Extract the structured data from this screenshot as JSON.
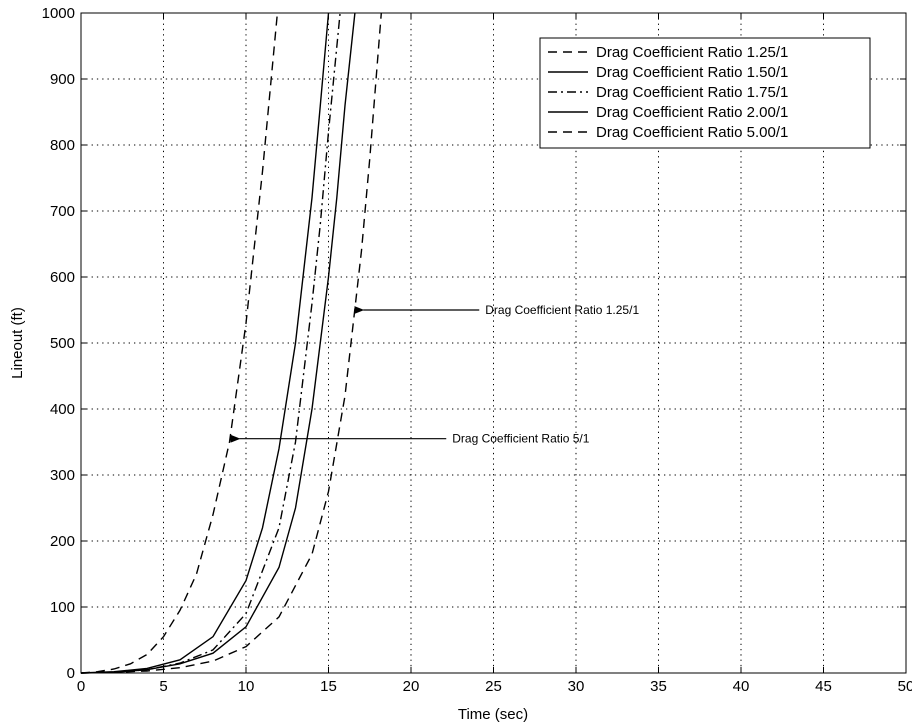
{
  "chart_data": {
    "type": "line",
    "title": "",
    "xlabel": "Time (sec)",
    "ylabel": "Lineout (ft)",
    "xlim": [
      0,
      50
    ],
    "ylim": [
      0,
      1000
    ],
    "xticks": [
      0,
      5,
      10,
      15,
      20,
      25,
      30,
      35,
      40,
      45,
      50
    ],
    "yticks": [
      0,
      100,
      200,
      300,
      400,
      500,
      600,
      700,
      800,
      900,
      1000
    ],
    "grid": true,
    "legend_position": "top-right",
    "series": [
      {
        "name": "Drag Coefficient Ratio 1.25/1",
        "style": "dashed",
        "color": "#000000",
        "x": [
          0,
          2,
          4,
          6,
          8,
          10,
          12,
          14,
          15,
          16,
          17,
          17.5,
          18.2
        ],
        "y": [
          0,
          1,
          3,
          8,
          18,
          40,
          85,
          180,
          275,
          420,
          640,
          780,
          1000
        ]
      },
      {
        "name": "Drag Coefficient Ratio 1.50/1",
        "style": "solid",
        "color": "#000000",
        "x": [
          0,
          2,
          4,
          6,
          8,
          10,
          12,
          13,
          14,
          15,
          15.5,
          16,
          16.6
        ],
        "y": [
          0,
          1,
          5,
          14,
          30,
          70,
          160,
          250,
          400,
          600,
          720,
          860,
          1000
        ]
      },
      {
        "name": "Drag Coefficient Ratio 1.75/1",
        "style": "dashdot",
        "color": "#000000",
        "x": [
          0,
          2,
          4,
          6,
          8,
          10,
          12,
          13,
          14,
          14.5,
          15,
          15.7
        ],
        "y": [
          0,
          1,
          5,
          15,
          35,
          90,
          220,
          350,
          560,
          680,
          820,
          1000
        ]
      },
      {
        "name": "Drag Coefficient Ratio 2.00/1",
        "style": "solid",
        "color": "#000000",
        "x": [
          0,
          2,
          4,
          6,
          8,
          10,
          11,
          12,
          13,
          14,
          14.5,
          15
        ],
        "y": [
          0,
          2,
          7,
          20,
          55,
          140,
          220,
          340,
          500,
          720,
          860,
          1000
        ]
      },
      {
        "name": "Drag Coefficient Ratio 5.00/1",
        "style": "dashed",
        "color": "#000000",
        "x": [
          0,
          1,
          2,
          3,
          4,
          5,
          6,
          7,
          8,
          9,
          10,
          11,
          11.9
        ],
        "y": [
          0,
          2,
          6,
          14,
          28,
          55,
          95,
          150,
          240,
          350,
          530,
          760,
          1000
        ]
      }
    ],
    "annotations": [
      {
        "text": "Drag Coefficient Ratio 1.25/1",
        "text_at": [
          24.5,
          550
        ],
        "arrow_to": [
          16.5,
          550
        ]
      },
      {
        "text": "Drag Coefficient Ratio 5/1",
        "text_at": [
          22.5,
          355
        ],
        "arrow_to": [
          9.0,
          355
        ]
      }
    ]
  }
}
